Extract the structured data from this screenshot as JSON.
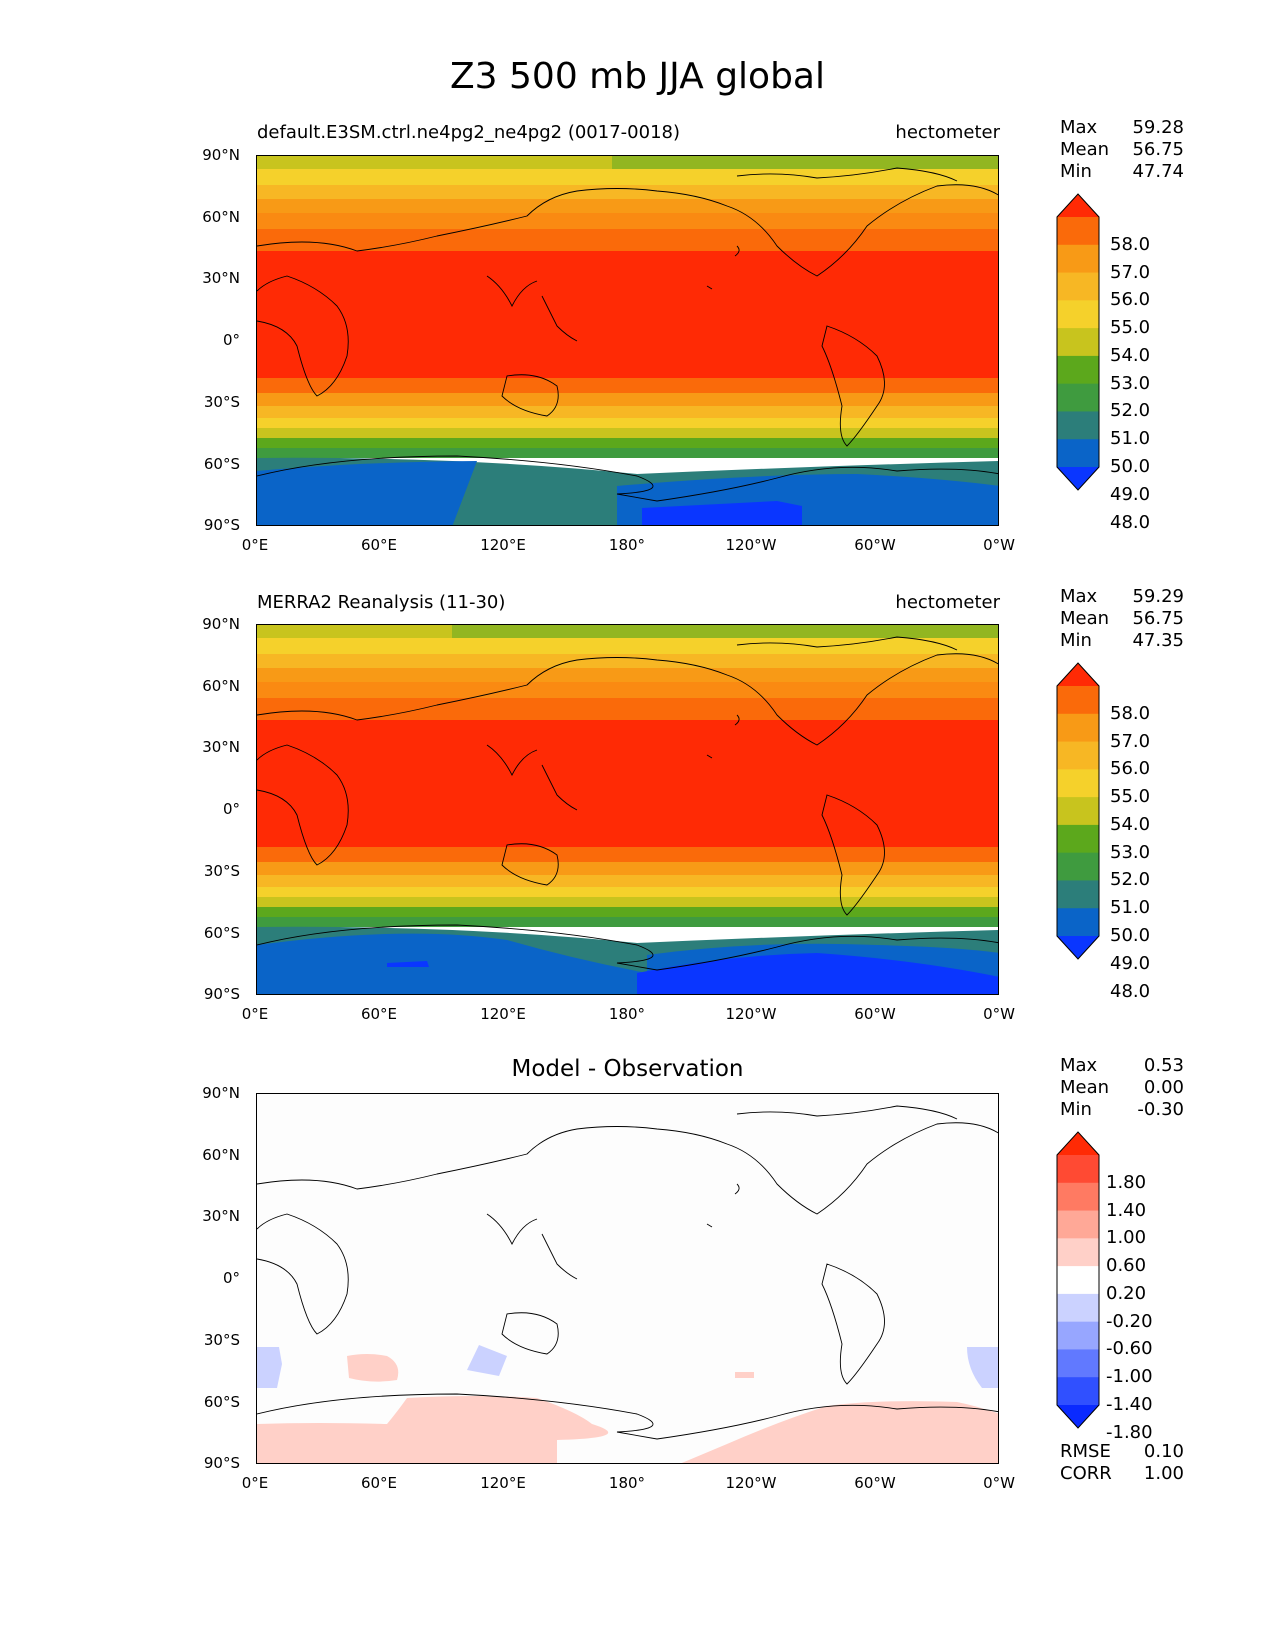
{
  "page_title": "Z3 500 mb JJA global",
  "axes": {
    "lat_labels": [
      "90°N",
      "60°N",
      "30°N",
      "0°",
      "30°S",
      "60°S",
      "90°S"
    ],
    "lon_labels": [
      "0°E",
      "60°E",
      "120°E",
      "180°",
      "120°W",
      "60°W",
      "0°W"
    ]
  },
  "panels": [
    {
      "title_left": "default.E3SM.ctrl.ne4pg2_ne4pg2 (0017-0018)",
      "title_right": "hectometer",
      "stats": [
        {
          "label": "Max",
          "value": "59.28"
        },
        {
          "label": "Mean",
          "value": "56.75"
        },
        {
          "label": "Min",
          "value": "47.74"
        }
      ],
      "colorbar_labels": [
        "58.0",
        "57.0",
        "56.0",
        "55.0",
        "54.0",
        "53.0",
        "52.0",
        "51.0",
        "50.0",
        "49.0",
        "48.0"
      ]
    },
    {
      "title_left": "MERRA2 Reanalysis (11-30)",
      "title_right": "hectometer",
      "stats": [
        {
          "label": "Max",
          "value": "59.29"
        },
        {
          "label": "Mean",
          "value": "56.75"
        },
        {
          "label": "Min",
          "value": "47.35"
        }
      ],
      "colorbar_labels": [
        "58.0",
        "57.0",
        "56.0",
        "55.0",
        "54.0",
        "53.0",
        "52.0",
        "51.0",
        "50.0",
        "49.0",
        "48.0"
      ]
    },
    {
      "title_center": "Model - Observation",
      "stats": [
        {
          "label": "Max",
          "value": "0.53"
        },
        {
          "label": "Mean",
          "value": "0.00"
        },
        {
          "label": "Min",
          "value": "-0.30"
        }
      ],
      "colorbar_labels": [
        "1.80",
        "1.40",
        "1.00",
        "0.60",
        "0.20",
        "-0.20",
        "-0.60",
        "-1.00",
        "-1.40",
        "-1.80"
      ],
      "metrics": [
        {
          "label": "RMSE",
          "value": "0.10"
        },
        {
          "label": "CORR",
          "value": "1.00"
        }
      ]
    }
  ],
  "colors": {
    "field_scale": [
      "#0a36ff",
      "#0a64c8",
      "#2c7e7a",
      "#3f9b3f",
      "#5ca81c",
      "#c8c41e",
      "#f5d12b",
      "#f7b724",
      "#f89a16",
      "#fa6a0a",
      "#ff2a05"
    ],
    "diff_scale": [
      "#0a2aff",
      "#3050ff",
      "#6179ff",
      "#97a6ff",
      "#cbd2ff",
      "#ffffff",
      "#ffd0c8",
      "#ffa897",
      "#ff7a62",
      "#ff4a33",
      "#ff2a05"
    ]
  }
}
